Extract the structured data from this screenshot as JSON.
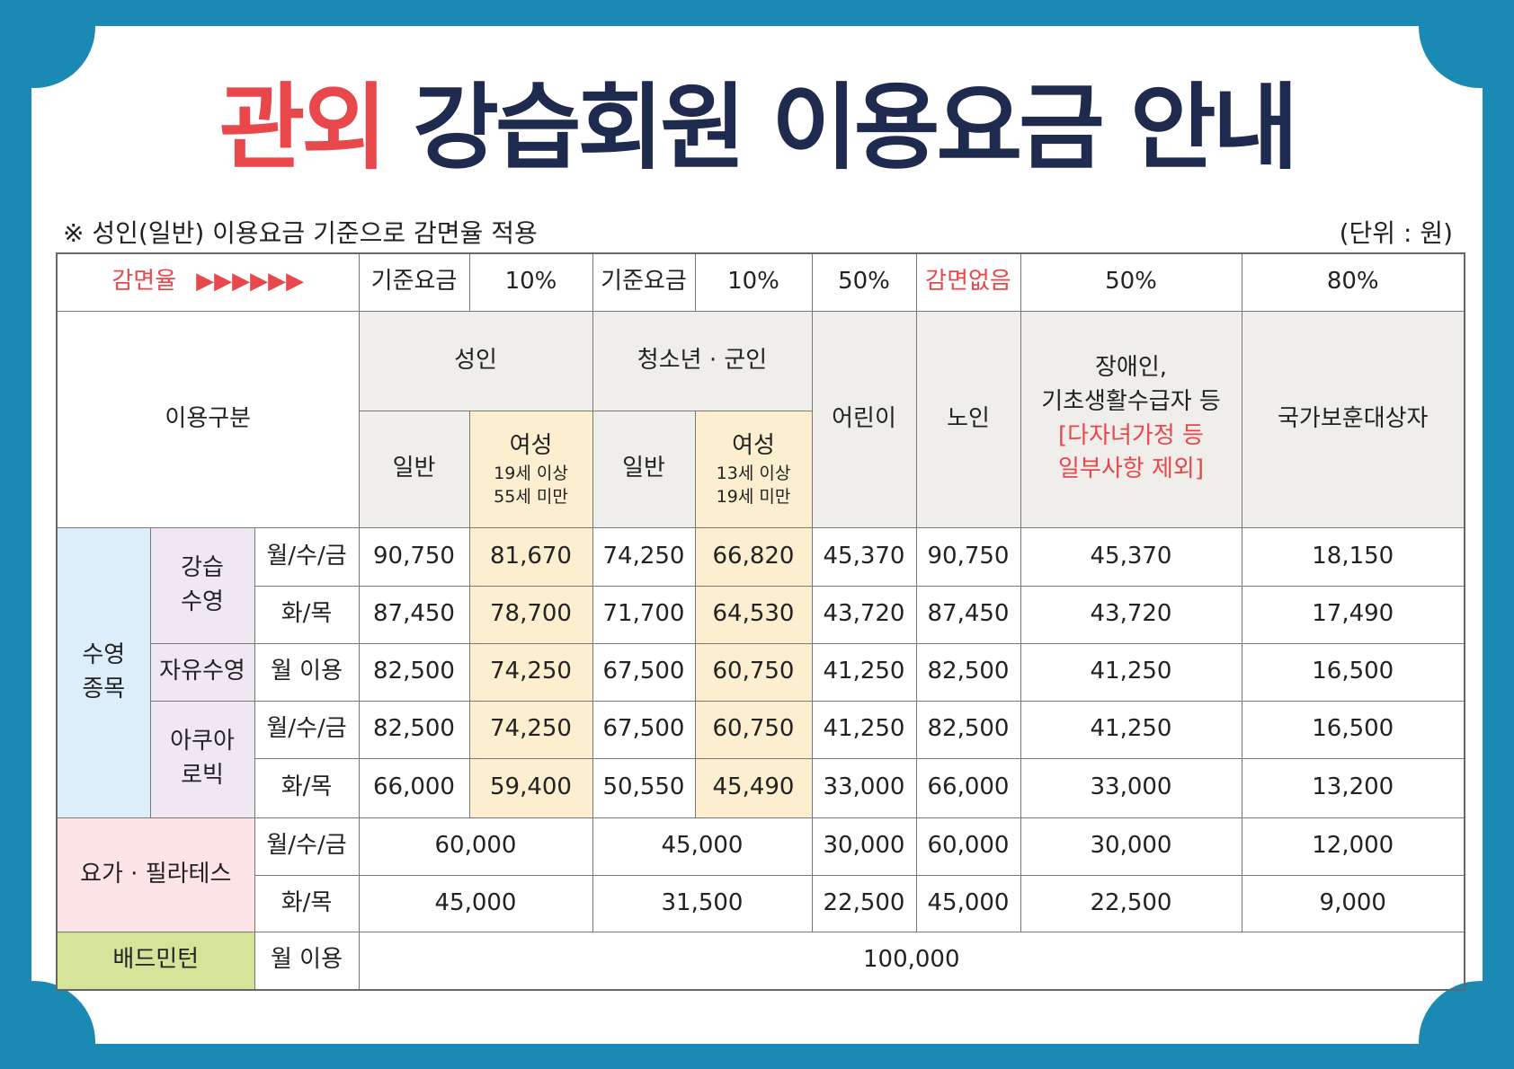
{
  "header": {
    "title_highlight": "관외",
    "title": "강습회원 이용요금 안내",
    "note": "※ 성인(일반) 이용요금 기준으로 감면율 적용",
    "unit": "(단위 : 원)"
  },
  "table": {
    "discount": {
      "label": "감면율",
      "arrows": "▶▶▶▶▶▶",
      "rates": [
        "기준요금",
        "10%",
        "기준요금",
        "10%",
        "50%",
        "감면없음",
        "50%",
        "80%"
      ]
    },
    "columns": {
      "category": "이용구분",
      "adult": "성인",
      "youth": "청소년 · 군인",
      "child": "어린이",
      "senior": "노인",
      "disabled": [
        "장애인,",
        "기초생활수급자 등"
      ],
      "disabled_note": [
        "[다자녀가정 등",
        "일부사항 제외]"
      ],
      "veteran": "국가보훈대상자",
      "adult_sub": [
        "일반",
        "여성"
      ],
      "adult_female_age": [
        "19세 이상",
        "55세 미만"
      ],
      "youth_sub": [
        "일반",
        "여성"
      ],
      "youth_female_age": [
        "13세 이상",
        "19세 미만"
      ]
    },
    "swimming": {
      "label": [
        "수영",
        "종목"
      ],
      "groups": [
        {
          "name": [
            "강습",
            "수영"
          ],
          "rows": [
            {
              "schedule": "월/수/금",
              "fees": [
                "90,750",
                "81,670",
                "74,250",
                "66,820",
                "45,370",
                "90,750",
                "45,370",
                "18,150"
              ]
            },
            {
              "schedule": "화/목",
              "fees": [
                "87,450",
                "78,700",
                "71,700",
                "64,530",
                "43,720",
                "87,450",
                "43,720",
                "17,490"
              ]
            }
          ]
        },
        {
          "name": [
            "자유수영"
          ],
          "rows": [
            {
              "schedule": "월 이용",
              "fees": [
                "82,500",
                "74,250",
                "67,500",
                "60,750",
                "41,250",
                "82,500",
                "41,250",
                "16,500"
              ]
            }
          ]
        },
        {
          "name": [
            "아쿠아",
            "로빅"
          ],
          "rows": [
            {
              "schedule": "월/수/금",
              "fees": [
                "82,500",
                "74,250",
                "67,500",
                "60,750",
                "41,250",
                "82,500",
                "41,250",
                "16,500"
              ]
            },
            {
              "schedule": "화/목",
              "fees": [
                "66,000",
                "59,400",
                "50,550",
                "45,490",
                "33,000",
                "66,000",
                "33,000",
                "13,200"
              ]
            }
          ]
        }
      ]
    },
    "yoga": {
      "label": "요가 · 필라테스",
      "rows": [
        {
          "schedule": "월/수/금",
          "fees": [
            "60,000",
            "45,000",
            "30,000",
            "60,000",
            "30,000",
            "12,000"
          ]
        },
        {
          "schedule": "화/목",
          "fees": [
            "45,000",
            "31,500",
            "22,500",
            "45,000",
            "22,500",
            "9,000"
          ]
        }
      ]
    },
    "badminton": {
      "label": "배드민턴",
      "rows": [
        {
          "schedule": "월 이용",
          "fees": [
            "100,000"
          ]
        }
      ]
    }
  }
}
